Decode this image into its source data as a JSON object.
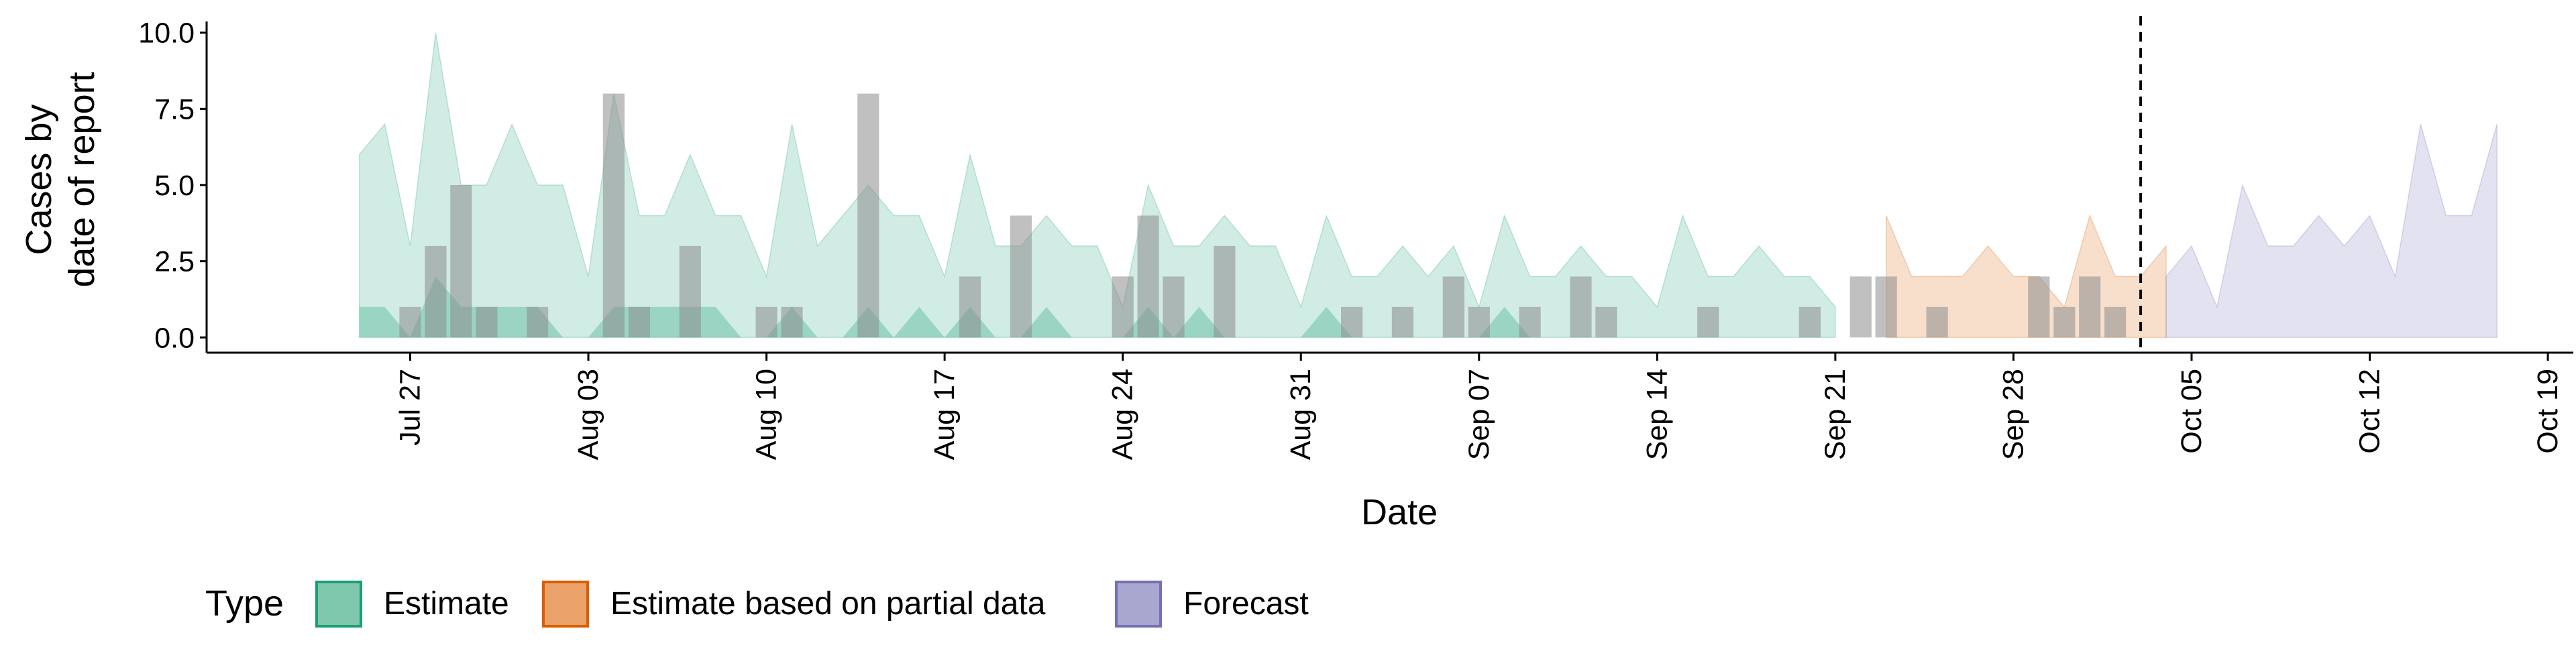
{
  "chart_data": {
    "type": "area",
    "xlabel": "Date",
    "ylabel_lines": [
      "Cases by",
      "date of report"
    ],
    "ylim": [
      -0.5,
      10.5
    ],
    "yticks": [
      0.0,
      2.5,
      5.0,
      7.5,
      10.0
    ],
    "ytick_labels": [
      "0.0",
      "2.5",
      "5.0",
      "7.5",
      "10.0"
    ],
    "xlim": [
      "2020-07-19",
      "2020-10-20"
    ],
    "xticks": [
      "2020-07-27",
      "2020-08-03",
      "2020-08-10",
      "2020-08-17",
      "2020-08-24",
      "2020-08-31",
      "2020-09-07",
      "2020-09-14",
      "2020-09-21",
      "2020-09-28",
      "2020-10-05",
      "2020-10-12",
      "2020-10-19"
    ],
    "xtick_labels": [
      "Jul 27",
      "Aug 03",
      "Aug 10",
      "Aug 17",
      "Aug 24",
      "Aug 31",
      "Sep 07",
      "Sep 14",
      "Sep 21",
      "Sep 28",
      "Oct 05",
      "Oct 12",
      "Oct 19"
    ],
    "vline_date": "2020-10-03",
    "legend": {
      "title": "Type",
      "position": "bottom-left",
      "entries": [
        {
          "label": "Estimate",
          "fill": "#7fc8ae",
          "stroke": "#1b9e77"
        },
        {
          "label": "Estimate based on partial data",
          "fill": "#eba16a",
          "stroke": "#d95f02"
        },
        {
          "label": "Forecast",
          "fill": "#a9a6d0",
          "stroke": "#7570b3"
        }
      ]
    },
    "series": [
      {
        "name": "Estimate",
        "color": "#1b9e77",
        "start_date": "2020-07-25",
        "upper": [
          6,
          7,
          3,
          10,
          5,
          5,
          7,
          5,
          5,
          2,
          8,
          4,
          4,
          6,
          4,
          4,
          2,
          7,
          3,
          4,
          5,
          4,
          4,
          2,
          6,
          3,
          3,
          4,
          3,
          3,
          1,
          5,
          3,
          3,
          4,
          3,
          3,
          1,
          4,
          2,
          2,
          3,
          2,
          3,
          1,
          4,
          2,
          2,
          3,
          2,
          2,
          1,
          4,
          2,
          2,
          3,
          2,
          2,
          1
        ],
        "lower": [
          1,
          1,
          0,
          2,
          1,
          1,
          1,
          1,
          0,
          0,
          1,
          1,
          1,
          1,
          1,
          0,
          0,
          1,
          0,
          0,
          1,
          0,
          1,
          0,
          1,
          0,
          0,
          1,
          0,
          0,
          0,
          1,
          0,
          1,
          0,
          0,
          0,
          0,
          1,
          0,
          0,
          0,
          0,
          0,
          0,
          1,
          0,
          0,
          0,
          0,
          0,
          0,
          0,
          0,
          0,
          0,
          0,
          0,
          0
        ]
      },
      {
        "name": "Estimate based on partial data",
        "color": "#d95f02",
        "start_date": "2020-09-23",
        "upper": [
          4,
          2,
          2,
          2,
          3,
          2,
          2,
          1,
          4,
          2,
          2,
          3
        ],
        "lower": [
          0,
          0,
          0,
          0,
          0,
          0,
          0,
          0,
          0,
          0,
          0,
          0
        ]
      },
      {
        "name": "Forecast",
        "color": "#7570b3",
        "start_date": "2020-10-04",
        "upper": [
          2,
          3,
          1,
          5,
          3,
          3,
          4,
          3,
          4,
          2,
          7,
          4,
          4,
          7
        ],
        "lower": [
          0,
          0,
          0,
          0,
          0,
          0,
          0,
          0,
          0,
          0,
          0,
          0,
          0,
          0
        ]
      }
    ],
    "observed_cases": {
      "color": "#8c8c8c",
      "dates": [
        "2020-07-27",
        "2020-07-28",
        "2020-07-29",
        "2020-07-30",
        "2020-08-01",
        "2020-08-04",
        "2020-08-05",
        "2020-08-07",
        "2020-08-10",
        "2020-08-11",
        "2020-08-14",
        "2020-08-18",
        "2020-08-20",
        "2020-08-24",
        "2020-08-25",
        "2020-08-26",
        "2020-08-28",
        "2020-09-02",
        "2020-09-04",
        "2020-09-06",
        "2020-09-07",
        "2020-09-09",
        "2020-09-11",
        "2020-09-12",
        "2020-09-16",
        "2020-09-20",
        "2020-09-22",
        "2020-09-23",
        "2020-09-25",
        "2020-09-29",
        "2020-09-30",
        "2020-10-01",
        "2020-10-02"
      ],
      "values": [
        1,
        3,
        5,
        1,
        1,
        8,
        1,
        3,
        1,
        1,
        8,
        2,
        4,
        2,
        4,
        2,
        3,
        1,
        1,
        2,
        1,
        1,
        2,
        1,
        1,
        1,
        2,
        2,
        1,
        2,
        1,
        2,
        1
      ]
    }
  }
}
